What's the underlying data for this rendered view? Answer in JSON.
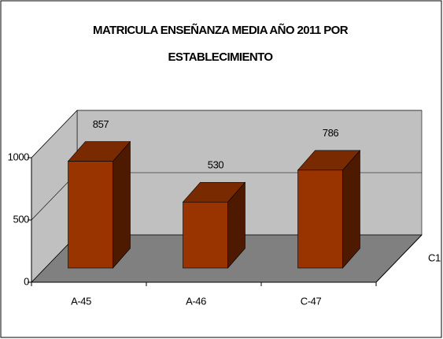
{
  "chart_data": {
    "type": "bar3d",
    "title": "MATRICULA ENSEÑANZA MEDIA AÑO 2011 POR ESTABLECIMIENTO",
    "categories": [
      "A-45",
      "A-46",
      "C-47"
    ],
    "series": [
      {
        "name": "C1",
        "color": "#993300",
        "values": [
          857,
          530,
          786
        ]
      }
    ],
    "ylim": [
      0,
      1000
    ],
    "yticks": [
      0,
      500,
      1000
    ],
    "grid": true
  }
}
